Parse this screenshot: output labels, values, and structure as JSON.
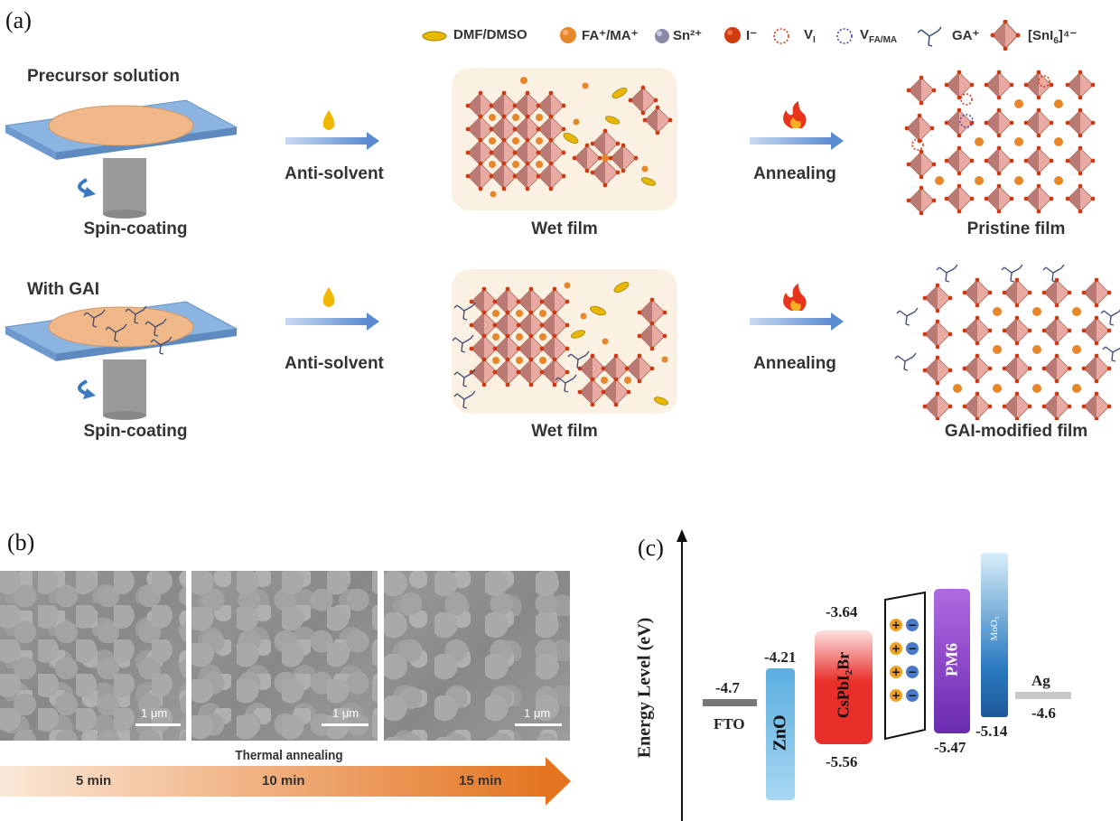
{
  "panel_labels": {
    "a": "(a)",
    "b": "(b)",
    "c": "(c)"
  },
  "legend": {
    "dmf": "DMF/DMSO",
    "fa": "FA⁺/MA⁺",
    "sn": "Sn²⁺",
    "i": "I⁻",
    "vi_main": "V",
    "vi_sub": "I",
    "vfa_main": "V",
    "vfa_sub": "FA/MA",
    "ga": "GA⁺",
    "sni_main": "[SnI",
    "sni_sub": "6",
    "sni_tail": "]⁴⁻"
  },
  "row1": {
    "title": "Precursor solution",
    "step1": "Spin-coating",
    "arrow1": "Anti-solvent",
    "wet": "Wet film",
    "arrow2": "Annealing",
    "result": "Pristine film"
  },
  "row2": {
    "title": "With GAI",
    "step1": "Spin-coating",
    "arrow1": "Anti-solvent",
    "wet": "Wet film",
    "arrow2": "Annealing",
    "result": "GAI-modified film"
  },
  "panel_b": {
    "scale": "1 μm",
    "annealing_title": "Thermal annealing",
    "times": [
      "5 min",
      "10 min",
      "15 min"
    ]
  },
  "panel_c": {
    "ylabel": "Energy Level (eV)",
    "fto_label": "FTO",
    "fto_val": "-4.7",
    "zno_label": "ZnO",
    "zno_top": "-4.21",
    "cs_label": "CsPbI₂Br",
    "cs_top": "-3.64",
    "cs_bottom": "-5.56",
    "pm6_label": "PM6",
    "pm6_bottom": "-5.47",
    "moo_label": "MoO₃",
    "moo_bottom": "-5.14",
    "ag_label": "Ag",
    "ag_val": "-4.6",
    "colors": {
      "zno": "#5aaee0",
      "cs": "#e8302a",
      "pm6": "#6a2ab0",
      "moo": "#2a7ac0"
    }
  }
}
